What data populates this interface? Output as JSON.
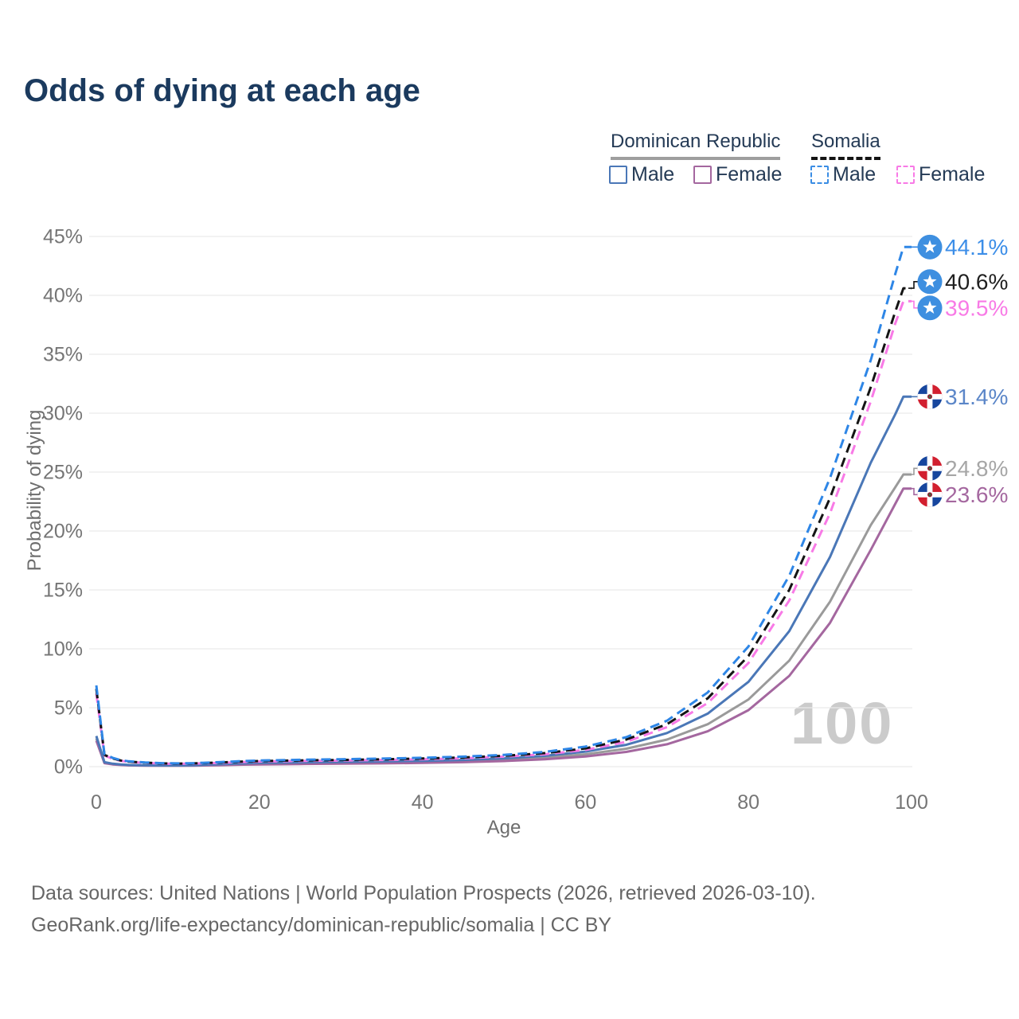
{
  "title": "Odds of dying at each age",
  "legend": {
    "groups": [
      {
        "label": "Dominican Republic",
        "line_style": "solid",
        "line_color": "#9e9e9e"
      },
      {
        "label": "Somalia",
        "line_style": "dashed",
        "line_color": "#141414"
      }
    ],
    "items": [
      {
        "label": "Male",
        "swatch_style": "solid",
        "swatch_color": "#4a77b7"
      },
      {
        "label": "Female",
        "swatch_style": "solid",
        "swatch_color": "#a4679f"
      },
      {
        "label": "Male",
        "swatch_style": "dashed",
        "swatch_color": "#3a8de4"
      },
      {
        "label": "Female",
        "swatch_style": "dashed",
        "swatch_color": "#f87ae6"
      }
    ]
  },
  "chart_data": {
    "type": "line",
    "title": "Odds of dying at each age",
    "xlabel": "Age",
    "ylabel": "Probability of dying",
    "xlim": [
      0,
      100
    ],
    "ylim": [
      0,
      45
    ],
    "x_ticks": [
      0,
      20,
      40,
      60,
      80,
      100
    ],
    "y_tick_labels": [
      "0%",
      "5%",
      "10%",
      "15%",
      "20%",
      "25%",
      "30%",
      "35%",
      "40%",
      "45%"
    ],
    "grid": true,
    "legend_position": "top-right",
    "watermark": "100",
    "x": [
      0,
      1,
      2,
      3,
      4,
      6,
      8,
      10,
      12,
      15,
      18,
      20,
      25,
      30,
      35,
      40,
      45,
      50,
      55,
      60,
      65,
      70,
      75,
      80,
      85,
      90,
      95,
      98,
      99,
      100
    ],
    "series": [
      {
        "name": "Dominican Republic Both sexes",
        "country": "Dominican Republic",
        "sex": "Both",
        "style": "solid",
        "color": "#9a9a9a",
        "end_label": "24.8%",
        "label_color": "#a6a6a6",
        "flag": "dominican-republic",
        "values": [
          2.4,
          0.34,
          0.22,
          0.16,
          0.12,
          0.1,
          0.09,
          0.09,
          0.1,
          0.16,
          0.22,
          0.25,
          0.29,
          0.32,
          0.35,
          0.4,
          0.47,
          0.58,
          0.76,
          1.05,
          1.52,
          2.3,
          3.6,
          5.7,
          9.0,
          14.0,
          20.5,
          23.7,
          24.8,
          24.8
        ]
      },
      {
        "name": "Dominican Republic Female",
        "country": "Dominican Republic",
        "sex": "Female",
        "style": "solid",
        "color": "#a4679f",
        "end_label": "23.6%",
        "label_color": "#a4679f",
        "flag": "dominican-republic",
        "values": [
          2.2,
          0.3,
          0.19,
          0.14,
          0.11,
          0.09,
          0.08,
          0.08,
          0.09,
          0.12,
          0.17,
          0.19,
          0.22,
          0.25,
          0.28,
          0.32,
          0.38,
          0.47,
          0.62,
          0.86,
          1.25,
          1.9,
          3.0,
          4.8,
          7.7,
          12.2,
          18.4,
          22.3,
          23.6,
          23.6
        ]
      },
      {
        "name": "Dominican Republic Male",
        "country": "Dominican Republic",
        "sex": "Male",
        "style": "solid",
        "color": "#4a77b7",
        "end_label": "31.4%",
        "label_color": "#5b86c8",
        "flag": "dominican-republic",
        "values": [
          2.6,
          0.38,
          0.25,
          0.18,
          0.14,
          0.11,
          0.1,
          0.1,
          0.12,
          0.2,
          0.28,
          0.32,
          0.36,
          0.4,
          0.44,
          0.49,
          0.57,
          0.7,
          0.92,
          1.28,
          1.85,
          2.85,
          4.5,
          7.2,
          11.5,
          17.8,
          25.8,
          29.9,
          31.4,
          31.4
        ]
      },
      {
        "name": "Somalia Female",
        "country": "Somalia",
        "sex": "Female",
        "style": "dashed",
        "color": "#f87ae6",
        "end_label": "39.5%",
        "label_color": "#f87ae6",
        "flag": "somalia",
        "values": [
          6.2,
          0.95,
          0.66,
          0.49,
          0.4,
          0.32,
          0.26,
          0.24,
          0.26,
          0.32,
          0.39,
          0.43,
          0.48,
          0.52,
          0.57,
          0.63,
          0.71,
          0.85,
          1.05,
          1.42,
          2.1,
          3.35,
          5.4,
          8.8,
          14.1,
          21.5,
          31.0,
          37.6,
          39.5,
          39.5
        ]
      },
      {
        "name": "Somalia Both sexes",
        "country": "Somalia",
        "sex": "Both",
        "style": "dashed",
        "color": "#141414",
        "end_label": "40.6%",
        "label_color": "#1f1f1f",
        "flag": "somalia",
        "values": [
          6.6,
          1.0,
          0.7,
          0.52,
          0.42,
          0.34,
          0.28,
          0.26,
          0.28,
          0.35,
          0.43,
          0.47,
          0.53,
          0.57,
          0.62,
          0.69,
          0.78,
          0.92,
          1.15,
          1.55,
          2.3,
          3.6,
          5.8,
          9.4,
          15.0,
          22.8,
          32.2,
          38.6,
          40.6,
          40.6
        ]
      },
      {
        "name": "Somalia Male",
        "country": "Somalia",
        "sex": "Male",
        "style": "dashed",
        "color": "#2e86e6",
        "end_label": "44.1%",
        "label_color": "#3c8ee8",
        "flag": "somalia",
        "values": [
          6.9,
          1.05,
          0.75,
          0.55,
          0.45,
          0.36,
          0.3,
          0.28,
          0.3,
          0.38,
          0.47,
          0.52,
          0.58,
          0.63,
          0.68,
          0.75,
          0.85,
          1.0,
          1.25,
          1.7,
          2.5,
          3.9,
          6.3,
          10.2,
          16.2,
          24.5,
          34.5,
          41.8,
          44.1,
          44.1
        ]
      }
    ]
  },
  "footer": {
    "line1": "Data sources: United Nations | World Population Prospects (2026, retrieved 2026-03-10).",
    "line2": "GeoRank.org/life-expectancy/dominican-republic/somalia | CC BY"
  }
}
